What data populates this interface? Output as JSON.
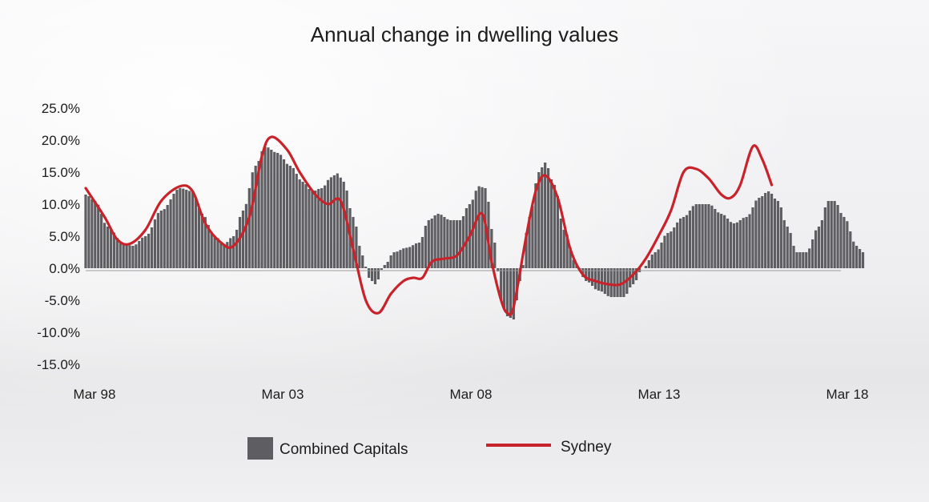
{
  "chart_data": {
    "type": "bar",
    "title": "Annual change in dwelling values",
    "xlabel": "",
    "ylabel": "",
    "ylim": [
      -15,
      25
    ],
    "y_ticks": [
      "25.0%",
      "20.0%",
      "15.0%",
      "10.0%",
      "5.0%",
      "0.0%",
      "-5.0%",
      "-10.0%",
      "-15.0%"
    ],
    "x_ticks": [
      "Mar 98",
      "Mar 03",
      "Mar 08",
      "Mar 13",
      "Mar 18"
    ],
    "x_range": [
      "1998-03",
      "2018-03"
    ],
    "grid": false,
    "legend_position": "bottom",
    "series": [
      {
        "name": "Combined Capitals",
        "kind": "bar",
        "color": "#5e5e62",
        "x": [
          "1998-03",
          "2018-03"
        ],
        "keypoints": [
          [
            "1998-03",
            11.5
          ],
          [
            "1998-06",
            10.5
          ],
          [
            "1998-10",
            6.5
          ],
          [
            "1999-03",
            3.8
          ],
          [
            "1999-06",
            3.5
          ],
          [
            "1999-10",
            5.0
          ],
          [
            "2000-03",
            9.0
          ],
          [
            "2000-09",
            12.5
          ],
          [
            "2001-01",
            12.0
          ],
          [
            "2001-04",
            8.5
          ],
          [
            "2001-08",
            5.0
          ],
          [
            "2001-11",
            3.8
          ],
          [
            "2002-02",
            5.0
          ],
          [
            "2002-05",
            9.0
          ],
          [
            "2002-09",
            16.0
          ],
          [
            "2002-12",
            19.0
          ],
          [
            "2003-04",
            18.0
          ],
          [
            "2003-08",
            16.0
          ],
          [
            "2003-12",
            13.5
          ],
          [
            "2004-03",
            12.0
          ],
          [
            "2004-06",
            12.5
          ],
          [
            "2004-09",
            14.2
          ],
          [
            "2004-11",
            14.8
          ],
          [
            "2005-01",
            13.5
          ],
          [
            "2005-04",
            8.0
          ],
          [
            "2005-07",
            2.0
          ],
          [
            "2005-09",
            -1.5
          ],
          [
            "2005-11",
            -2.5
          ],
          [
            "2006-02",
            0.5
          ],
          [
            "2006-05",
            2.5
          ],
          [
            "2006-09",
            3.2
          ],
          [
            "2007-01",
            4.0
          ],
          [
            "2007-04",
            7.5
          ],
          [
            "2007-07",
            8.5
          ],
          [
            "2007-11",
            7.5
          ],
          [
            "2008-02",
            7.5
          ],
          [
            "2008-05",
            10.0
          ],
          [
            "2008-08",
            12.8
          ],
          [
            "2008-10",
            12.5
          ],
          [
            "2009-01",
            4.0
          ],
          [
            "2009-03",
            -5.0
          ],
          [
            "2009-05",
            -7.5
          ],
          [
            "2009-07",
            -8.0
          ],
          [
            "2009-09",
            -2.0
          ],
          [
            "2009-12",
            8.0
          ],
          [
            "2010-03",
            15.0
          ],
          [
            "2010-05",
            16.5
          ],
          [
            "2010-08",
            13.0
          ],
          [
            "2010-11",
            6.0
          ],
          [
            "2011-03",
            0.5
          ],
          [
            "2011-06",
            -2.0
          ],
          [
            "2011-10",
            -3.5
          ],
          [
            "2012-02",
            -4.5
          ],
          [
            "2012-06",
            -4.5
          ],
          [
            "2012-09",
            -2.5
          ],
          [
            "2012-12",
            0.0
          ],
          [
            "2013-04",
            2.5
          ],
          [
            "2013-08",
            5.5
          ],
          [
            "2014-01",
            8.0
          ],
          [
            "2014-05",
            10.0
          ],
          [
            "2014-09",
            10.0
          ],
          [
            "2015-01",
            8.5
          ],
          [
            "2015-05",
            7.0
          ],
          [
            "2015-09",
            8.0
          ],
          [
            "2016-01",
            11.0
          ],
          [
            "2016-04",
            12.0
          ],
          [
            "2016-07",
            10.5
          ],
          [
            "2016-10",
            6.5
          ],
          [
            "2017-01",
            2.5
          ],
          [
            "2017-04",
            2.5
          ],
          [
            "2017-08",
            6.5
          ],
          [
            "2017-11",
            10.5
          ],
          [
            "2018-01",
            10.5
          ],
          [
            "2018-04",
            8.0
          ],
          [
            "2018-08",
            3.5
          ],
          [
            "2018-10",
            2.5
          ]
        ]
      },
      {
        "name": "Sydney",
        "kind": "line",
        "color": "#c8232b",
        "points": [
          [
            "1998-03",
            12.5
          ],
          [
            "1998-09",
            8.0
          ],
          [
            "1999-01",
            4.5
          ],
          [
            "1999-05",
            3.8
          ],
          [
            "1999-10",
            6.0
          ],
          [
            "2000-03",
            10.5
          ],
          [
            "2000-09",
            12.8
          ],
          [
            "2001-01",
            12.0
          ],
          [
            "2001-05",
            7.0
          ],
          [
            "2001-10",
            4.0
          ],
          [
            "2002-02",
            3.5
          ],
          [
            "2002-07",
            8.0
          ],
          [
            "2002-11",
            17.5
          ],
          [
            "2003-02",
            20.5
          ],
          [
            "2003-07",
            18.5
          ],
          [
            "2003-11",
            15.0
          ],
          [
            "2004-04",
            11.5
          ],
          [
            "2004-08",
            10.0
          ],
          [
            "2004-12",
            10.5
          ],
          [
            "2005-04",
            3.0
          ],
          [
            "2005-08",
            -5.0
          ],
          [
            "2005-12",
            -7.0
          ],
          [
            "2006-04",
            -4.0
          ],
          [
            "2006-08",
            -2.0
          ],
          [
            "2006-11",
            -1.5
          ],
          [
            "2007-02",
            -1.5
          ],
          [
            "2007-05",
            1.0
          ],
          [
            "2007-09",
            1.5
          ],
          [
            "2008-01",
            2.0
          ],
          [
            "2008-05",
            5.0
          ],
          [
            "2008-09",
            8.5
          ],
          [
            "2008-12",
            1.0
          ],
          [
            "2009-03",
            -5.0
          ],
          [
            "2009-05",
            -7.0
          ],
          [
            "2009-07",
            -6.0
          ],
          [
            "2009-11",
            5.0
          ],
          [
            "2010-02",
            12.0
          ],
          [
            "2010-05",
            14.5
          ],
          [
            "2010-09",
            11.0
          ],
          [
            "2011-01",
            3.0
          ],
          [
            "2011-05",
            -1.0
          ],
          [
            "2011-09",
            -2.0
          ],
          [
            "2012-01",
            -2.5
          ],
          [
            "2012-05",
            -2.5
          ],
          [
            "2012-09",
            -1.0
          ],
          [
            "2013-01",
            1.5
          ],
          [
            "2013-05",
            5.0
          ],
          [
            "2013-09",
            9.0
          ],
          [
            "2014-01",
            15.0
          ],
          [
            "2014-05",
            15.5
          ],
          [
            "2014-09",
            14.0
          ],
          [
            "2015-01",
            11.5
          ],
          [
            "2015-04",
            11.0
          ],
          [
            "2015-07",
            13.0
          ],
          [
            "2015-11",
            19.0
          ],
          [
            "2016-02",
            17.0
          ],
          [
            "2016-05",
            13.0
          ]
        ]
      }
    ],
    "legend": [
      {
        "name": "Combined Capitals",
        "symbol": "square"
      },
      {
        "name": "Sydney",
        "symbol": "line"
      }
    ]
  }
}
